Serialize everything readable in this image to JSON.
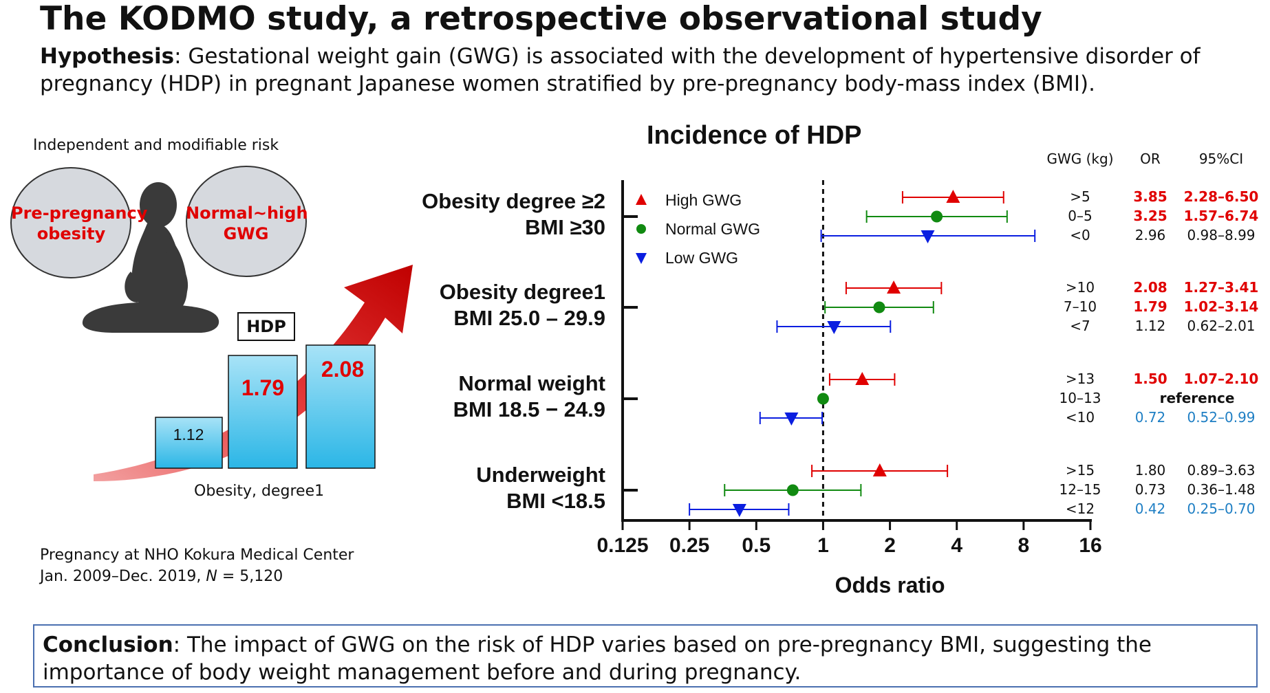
{
  "header": {
    "title": "The KODMO study, a retrospective observational study",
    "hypothesis_label": "Hypothesis",
    "hypothesis_line1": ": Gestational weight gain (GWG) is associated with the development of hypertensive disorder of",
    "hypothesis_line2": "pregnancy (HDP) in pregnant Japanese women stratified by pre-pregnancy body-mass index (BMI)."
  },
  "left_panel": {
    "risk_caption": "Independent and modifiable risk",
    "circle_left_line1": "Pre-pregnancy",
    "circle_left_line2": "obesity",
    "circle_right_line1": "Normal~high",
    "circle_right_line2": "GWG",
    "hdp_label": "HDP",
    "bar_caption": "Obesity, degree1",
    "mini_bars": [
      {
        "label": "1.12",
        "value": 1.12,
        "highlight": false
      },
      {
        "label": "1.79",
        "value": 1.79,
        "highlight": true
      },
      {
        "label": "2.08",
        "value": 2.08,
        "highlight": true
      }
    ],
    "footnote_line1": "Pregnancy at NHO Kokura Medical Center",
    "footnote_line2_pre": "Jan. 2009–Dec. 2019, ",
    "footnote_n": "N",
    "footnote_line2_post": " = 5,120"
  },
  "chart_data": {
    "type": "scatter",
    "subtype": "forest-plot",
    "title": "Incidence of HDP",
    "xlabel": "Odds ratio",
    "x_scale": "log2",
    "xlim": [
      0.125,
      16
    ],
    "x_ticks": [
      "0.125",
      "0.25",
      "0.5",
      "1",
      "2",
      "4",
      "8",
      "16"
    ],
    "x_tick_values": [
      0.125,
      0.25,
      0.5,
      1,
      2,
      4,
      8,
      16
    ],
    "reference_line": 1,
    "legend": [
      {
        "name": "High GWG",
        "marker": "triangle-up",
        "color": "#e00000"
      },
      {
        "name": "Normal GWG",
        "marker": "circle",
        "color": "#118a11"
      },
      {
        "name": "Low GWG",
        "marker": "triangle-down",
        "color": "#0a1ee0"
      }
    ],
    "legend_position": "top-left",
    "table_headers": {
      "gwg": "GWG (kg)",
      "or": "OR",
      "ci": "95%CI"
    },
    "groups": [
      {
        "label_line1": "Obesity degree ≥2",
        "label_line2": "BMI ≥30",
        "rows": [
          {
            "series": "High GWG",
            "gwg": ">5",
            "or": 3.85,
            "lo": 2.28,
            "hi": 6.5,
            "or_text": "3.85",
            "ci_text": "2.28–6.50",
            "style": "sig"
          },
          {
            "series": "Normal GWG",
            "gwg": "0–5",
            "or": 3.25,
            "lo": 1.57,
            "hi": 6.74,
            "or_text": "3.25",
            "ci_text": "1.57–6.74",
            "style": "sig"
          },
          {
            "series": "Low GWG",
            "gwg": "<0",
            "or": 2.96,
            "lo": 0.98,
            "hi": 8.99,
            "or_text": "2.96",
            "ci_text": "0.98–8.99",
            "style": "plain"
          }
        ]
      },
      {
        "label_line1": "Obesity degree1",
        "label_line2": "BMI 25.0 – 29.9",
        "rows": [
          {
            "series": "High GWG",
            "gwg": ">10",
            "or": 2.08,
            "lo": 1.27,
            "hi": 3.41,
            "or_text": "2.08",
            "ci_text": "1.27–3.41",
            "style": "sig"
          },
          {
            "series": "Normal GWG",
            "gwg": "7–10",
            "or": 1.79,
            "lo": 1.02,
            "hi": 3.14,
            "or_text": "1.79",
            "ci_text": "1.02–3.14",
            "style": "sig"
          },
          {
            "series": "Low GWG",
            "gwg": "<7",
            "or": 1.12,
            "lo": 0.62,
            "hi": 2.01,
            "or_text": "1.12",
            "ci_text": "0.62–2.01",
            "style": "plain"
          }
        ]
      },
      {
        "label_line1": "Normal weight",
        "label_line2": "BMI 18.5 − 24.9",
        "rows": [
          {
            "series": "High GWG",
            "gwg": ">13",
            "or": 1.5,
            "lo": 1.07,
            "hi": 2.1,
            "or_text": "1.50",
            "ci_text": "1.07–2.10",
            "style": "sig"
          },
          {
            "series": "Normal GWG",
            "gwg": "10–13",
            "or": 1.0,
            "lo": 1.0,
            "hi": 1.0,
            "or_text": "reference",
            "ci_text": "",
            "style": "ref"
          },
          {
            "series": "Low GWG",
            "gwg": "<10",
            "or": 0.72,
            "lo": 0.52,
            "hi": 0.99,
            "or_text": "0.72",
            "ci_text": "0.52–0.99",
            "style": "low"
          }
        ]
      },
      {
        "label_line1": "Underweight",
        "label_line2": "BMI <18.5",
        "rows": [
          {
            "series": "High GWG",
            "gwg": ">15",
            "or": 1.8,
            "lo": 0.89,
            "hi": 3.63,
            "or_text": "1.80",
            "ci_text": "0.89–3.63",
            "style": "plain"
          },
          {
            "series": "Normal GWG",
            "gwg": "12–15",
            "or": 0.73,
            "lo": 0.36,
            "hi": 1.48,
            "or_text": "0.73",
            "ci_text": "0.36–1.48",
            "style": "plain"
          },
          {
            "series": "Low GWG",
            "gwg": "<12",
            "or": 0.42,
            "lo": 0.25,
            "hi": 0.7,
            "or_text": "0.42",
            "ci_text": "0.25–0.70",
            "style": "low"
          }
        ]
      }
    ]
  },
  "conclusion": {
    "label": "Conclusion",
    "text": ": The impact of GWG on the risk of HDP varies based on pre-pregnancy BMI, suggesting the importance of body weight management before and during pregnancy."
  }
}
